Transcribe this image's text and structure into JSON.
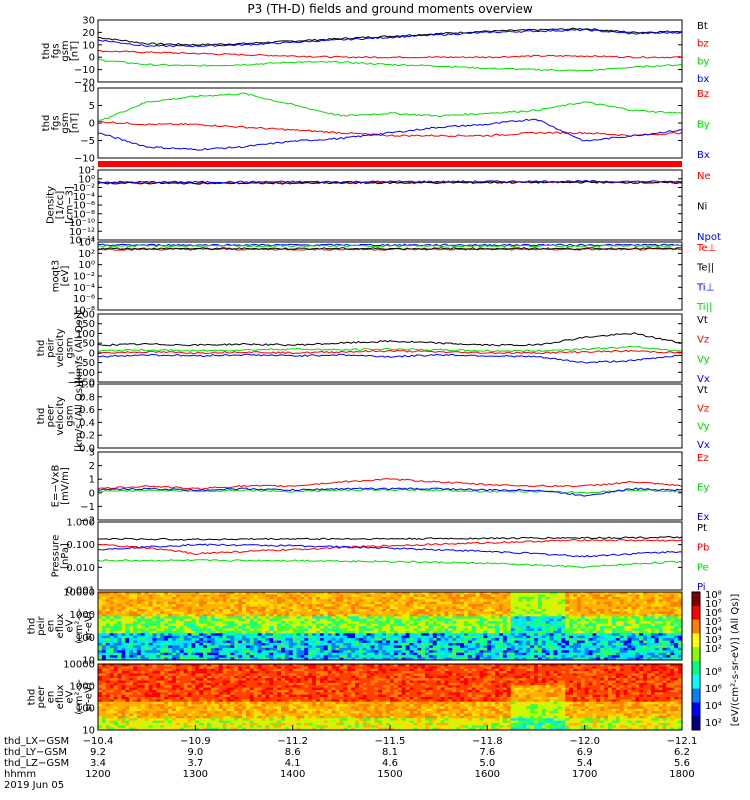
{
  "title": "P3 (TH-D) fields and ground moments overview",
  "colors": {
    "black": "#000000",
    "red": "#ff0000",
    "green": "#00dd00",
    "blue": "#0000ff",
    "qual_bar": "#ff0000"
  },
  "chart_data": [
    {
      "type": "line",
      "id": "fgs_gsm",
      "ylabel": [
        "thd",
        "fgs",
        "gsm",
        "[nT]"
      ],
      "ylim": [
        -20,
        30
      ],
      "yticks": [
        "30",
        "20",
        "10",
        "0",
        "−10",
        "−20"
      ],
      "yscale": "linear",
      "series": [
        {
          "name": "Bt",
          "color": "black",
          "x": [
            12.0,
            12.5,
            13.0,
            13.5,
            14.0,
            14.5,
            15.0,
            15.5,
            16.0,
            16.5,
            17.0,
            17.5,
            18.0
          ],
          "y": [
            16,
            11,
            10,
            11,
            13,
            15,
            17,
            19,
            21,
            22,
            23,
            20,
            21
          ]
        },
        {
          "name": "bz",
          "color": "red",
          "x": [
            12.0,
            12.5,
            13.0,
            13.5,
            14.0,
            14.5,
            15.0,
            15.5,
            16.0,
            16.5,
            17.0,
            17.5,
            18.0
          ],
          "y": [
            5,
            4,
            3,
            2,
            1,
            0,
            0,
            0,
            0,
            1,
            1,
            0,
            0
          ]
        },
        {
          "name": "by",
          "color": "green",
          "x": [
            12.0,
            12.5,
            13.0,
            13.5,
            14.0,
            14.5,
            15.0,
            15.5,
            16.0,
            16.5,
            17.0,
            17.5,
            18.0
          ],
          "y": [
            -2,
            -6,
            -7,
            -6,
            -4,
            -4,
            -6,
            -7,
            -9,
            -10,
            -11,
            -8,
            -6
          ]
        },
        {
          "name": "bx",
          "color": "blue",
          "x": [
            12.0,
            12.5,
            13.0,
            13.5,
            14.0,
            14.5,
            15.0,
            15.5,
            16.0,
            16.5,
            17.0,
            17.5,
            18.0
          ],
          "y": [
            14,
            9,
            9,
            10,
            12,
            14,
            16,
            18,
            20,
            21,
            22,
            19,
            20
          ]
        }
      ]
    },
    {
      "type": "line",
      "id": "fgs_gsm_2",
      "ylabel": [
        "thd",
        "fgs",
        "gsm",
        "[nT]"
      ],
      "ylim": [
        -15,
        10
      ],
      "yticks": [
        "10",
        "5",
        "0",
        "−5",
        "−10"
      ],
      "yscale": "linear",
      "series": [
        {
          "name": "Bz",
          "color": "red",
          "x": [
            12.0,
            12.5,
            13.0,
            13.5,
            14.0,
            14.5,
            15.0,
            15.5,
            16.0,
            16.5,
            17.0,
            17.5,
            18.0
          ],
          "y": [
            -2,
            -3,
            -3,
            -4,
            -5,
            -6,
            -7,
            -7,
            -7,
            -6,
            -6,
            -7,
            -6
          ]
        },
        {
          "name": "By",
          "color": "green",
          "x": [
            12.0,
            12.5,
            13.0,
            13.5,
            14.0,
            14.5,
            15.0,
            15.5,
            16.0,
            16.5,
            17.0,
            17.5,
            18.0
          ],
          "y": [
            -2,
            5,
            7,
            8,
            4,
            0,
            1,
            0,
            1,
            2,
            5,
            2,
            1
          ]
        },
        {
          "name": "Bx",
          "color": "blue",
          "x": [
            12.0,
            12.5,
            13.0,
            13.5,
            14.0,
            14.5,
            15.0,
            15.5,
            16.0,
            16.5,
            17.0,
            17.5,
            18.0
          ],
          "y": [
            -6,
            -11,
            -12,
            -11,
            -9,
            -8,
            -6,
            -4,
            -3,
            -1,
            -9,
            -7,
            -5
          ]
        }
      ]
    },
    {
      "type": "line",
      "id": "density",
      "ylabel": [
        "Density",
        "[1/cc]",
        "[cm−3]"
      ],
      "ylim": [
        1e-14,
        10000.0
      ],
      "yticks": [
        "10²",
        "10⁰",
        "10⁻²",
        "10⁻⁴",
        "10⁻⁶",
        "10⁻⁸",
        "10⁻¹⁰",
        "10⁻¹²",
        "10⁻¹⁴"
      ],
      "yscale": "log",
      "series": [
        {
          "name": "Ne",
          "color": "red",
          "x": [
            12.0,
            13.0,
            14.0,
            15.0,
            16.0,
            17.0,
            18.0
          ],
          "y": [
            5,
            5,
            5,
            6,
            7,
            8,
            6
          ]
        },
        {
          "name": "Ni",
          "color": "black",
          "x": [
            12.0,
            13.0,
            14.0,
            15.0,
            16.0,
            17.0,
            18.0
          ],
          "y": [
            4,
            4,
            4,
            5,
            6,
            7,
            5
          ]
        },
        {
          "name": "Npot",
          "color": "blue",
          "x": [
            12.0,
            13.0,
            14.0,
            15.0,
            16.0,
            17.0,
            18.0
          ],
          "y": [
            8,
            8,
            9,
            10,
            11,
            12,
            10
          ]
        }
      ]
    },
    {
      "type": "line",
      "id": "moqt3",
      "ylabel": [
        "moqt3",
        "[eV]"
      ],
      "ylim": [
        1e-08,
        10000.0
      ],
      "yticks": [
        "10⁴",
        "10²",
        "10⁰",
        "10⁻²",
        "10⁻⁴",
        "10⁻⁶",
        "10⁻⁸"
      ],
      "yscale": "log",
      "series": [
        {
          "name": "Te⊥",
          "color": "red",
          "x": [
            12.0,
            13.0,
            14.0,
            15.0,
            16.0,
            17.0,
            18.0
          ],
          "y": [
            500,
            500,
            500,
            500,
            500,
            500,
            500
          ]
        },
        {
          "name": "Te||",
          "color": "black",
          "x": [
            12.0,
            13.0,
            14.0,
            15.0,
            16.0,
            17.0,
            18.0
          ],
          "y": [
            700,
            700,
            700,
            700,
            700,
            700,
            700
          ]
        },
        {
          "name": "Ti⊥",
          "color": "blue",
          "x": [
            12.0,
            13.0,
            14.0,
            15.0,
            16.0,
            17.0,
            18.0
          ],
          "y": [
            3000,
            3000,
            3000,
            3000,
            3000,
            3000,
            3000
          ]
        },
        {
          "name": "Ti||",
          "color": "green",
          "x": [
            12.0,
            13.0,
            14.0,
            15.0,
            16.0,
            17.0,
            18.0
          ],
          "y": [
            2000,
            2000,
            2000,
            2000,
            2000,
            2000,
            2000
          ]
        }
      ]
    },
    {
      "type": "line",
      "id": "peir_velocity",
      "ylabel": [
        "thd",
        "peir",
        "velocity",
        "gsm",
        "[km/s (All Qs)]"
      ],
      "ylim": [
        -150,
        200
      ],
      "yticks": [
        "200",
        "150",
        "100",
        "50",
        "0",
        "−50",
        "−100",
        "−150"
      ],
      "yscale": "linear",
      "series": [
        {
          "name": "Vt",
          "color": "black",
          "x": [
            12.0,
            12.5,
            13.0,
            13.5,
            14.0,
            14.5,
            15.0,
            15.5,
            16.0,
            16.5,
            17.0,
            17.5,
            18.0
          ],
          "y": [
            40,
            45,
            40,
            45,
            40,
            50,
            60,
            50,
            40,
            40,
            80,
            100,
            50
          ]
        },
        {
          "name": "Vz",
          "color": "red",
          "x": [
            12.0,
            12.5,
            13.0,
            13.5,
            14.0,
            14.5,
            15.0,
            15.5,
            16.0,
            16.5,
            17.0,
            17.5,
            18.0
          ],
          "y": [
            0,
            5,
            0,
            5,
            0,
            5,
            10,
            5,
            0,
            0,
            5,
            10,
            0
          ]
        },
        {
          "name": "Vy",
          "color": "green",
          "x": [
            12.0,
            12.5,
            13.0,
            13.5,
            14.0,
            14.5,
            15.0,
            15.5,
            16.0,
            16.5,
            17.0,
            17.5,
            18.0
          ],
          "y": [
            10,
            15,
            10,
            15,
            20,
            15,
            20,
            15,
            10,
            10,
            20,
            30,
            10
          ]
        },
        {
          "name": "Vx",
          "color": "blue",
          "x": [
            12.0,
            12.5,
            13.0,
            13.5,
            14.0,
            14.5,
            15.0,
            15.5,
            16.0,
            16.5,
            17.0,
            17.5,
            18.0
          ],
          "y": [
            -20,
            -10,
            -15,
            -10,
            -15,
            -10,
            -20,
            -10,
            -15,
            -20,
            -50,
            -40,
            -10
          ]
        }
      ]
    },
    {
      "type": "line",
      "id": "peer_velocity",
      "ylabel": [
        "thd",
        "peer",
        "velocity",
        "gsm",
        "[km/s (All Qs)]"
      ],
      "ylim": [
        0,
        1
      ],
      "yticks": [
        "1.0",
        "0.8",
        "0.6",
        "0.4",
        "0.2",
        "0.0"
      ],
      "yscale": "linear",
      "series": [
        {
          "name": "Vt",
          "color": "black",
          "x": [],
          "y": []
        },
        {
          "name": "Vz",
          "color": "red",
          "x": [],
          "y": []
        },
        {
          "name": "Vy",
          "color": "green",
          "x": [],
          "y": []
        },
        {
          "name": "Vx",
          "color": "blue",
          "x": [],
          "y": []
        }
      ]
    },
    {
      "type": "line",
      "id": "efield",
      "ylabel": [
        "E=−VxB",
        "[mV/m]"
      ],
      "ylim": [
        -2,
        3
      ],
      "yticks": [
        "3",
        "2",
        "1",
        "0",
        "−1",
        "−2"
      ],
      "yscale": "linear",
      "series": [
        {
          "name": "Ez",
          "color": "red",
          "x": [
            12.0,
            12.5,
            13.0,
            13.5,
            14.0,
            14.5,
            15.0,
            15.5,
            16.0,
            16.5,
            17.0,
            17.5,
            18.0
          ],
          "y": [
            0.3,
            0.5,
            0.3,
            0.5,
            0.5,
            0.8,
            1.0,
            0.8,
            0.6,
            0.5,
            0.5,
            0.8,
            0.5
          ]
        },
        {
          "name": "Ey",
          "color": "green",
          "x": [
            12.0,
            12.5,
            13.0,
            13.5,
            14.0,
            14.5,
            15.0,
            15.5,
            16.0,
            16.5,
            17.0,
            17.5,
            18.0
          ],
          "y": [
            0.1,
            0.2,
            0.1,
            0.2,
            0.1,
            0.2,
            0.2,
            0.2,
            0.1,
            0.1,
            0.0,
            0.2,
            0.1
          ]
        },
        {
          "name": "Ex",
          "color": "blue",
          "x": [
            12.0,
            12.5,
            13.0,
            13.5,
            14.0,
            14.5,
            15.0,
            15.5,
            16.0,
            16.5,
            17.0,
            17.5,
            18.0
          ],
          "y": [
            0.2,
            0.3,
            0.2,
            0.3,
            0.2,
            0.3,
            0.3,
            0.3,
            0.2,
            0.2,
            -0.2,
            0.3,
            0.2
          ]
        }
      ]
    },
    {
      "type": "line",
      "id": "pressure",
      "ylabel": [
        "Pressure",
        "[nPa]"
      ],
      "ylim": [
        0.001,
        1.0
      ],
      "yticks": [
        "1.000",
        "0.100",
        "0.010",
        "0.001"
      ],
      "yscale": "log",
      "series": [
        {
          "name": "Pt",
          "color": "black",
          "x": [
            12.0,
            13.0,
            14.0,
            15.0,
            16.0,
            17.0,
            18.0
          ],
          "y": [
            0.18,
            0.17,
            0.18,
            0.18,
            0.19,
            0.2,
            0.21
          ]
        },
        {
          "name": "Pb",
          "color": "red",
          "x": [
            12.0,
            13.0,
            14.0,
            15.0,
            16.0,
            17.0,
            18.0
          ],
          "y": [
            0.1,
            0.04,
            0.06,
            0.09,
            0.12,
            0.16,
            0.15
          ]
        },
        {
          "name": "Pe",
          "color": "green",
          "x": [
            12.0,
            13.0,
            14.0,
            15.0,
            16.0,
            17.0,
            18.0
          ],
          "y": [
            0.02,
            0.02,
            0.02,
            0.018,
            0.015,
            0.01,
            0.018
          ]
        },
        {
          "name": "Pi",
          "color": "blue",
          "x": [
            12.0,
            13.0,
            14.0,
            15.0,
            16.0,
            17.0,
            18.0
          ],
          "y": [
            0.06,
            0.1,
            0.09,
            0.07,
            0.05,
            0.03,
            0.05
          ]
        }
      ]
    },
    {
      "type": "heatmap",
      "id": "peir_eflux",
      "ylabel": [
        "thd",
        "peir",
        "en",
        "eflux",
        "eV",
        "(cm²-s-",
        "sr-eV)"
      ],
      "ylim": [
        5,
        25000
      ],
      "yticks": [
        "10000",
        "1000",
        "100",
        "10"
      ],
      "yscale": "log"
    },
    {
      "type": "heatmap",
      "id": "peer_eflux",
      "ylabel": [
        "thd",
        "peer",
        "en",
        "eflux",
        "eV",
        "(cm²-s-",
        "sr-eV)"
      ],
      "ylim": [
        5,
        25000
      ],
      "yticks": [
        "10000",
        "1000",
        "100",
        "10"
      ],
      "yscale": "log"
    }
  ],
  "colorbar": {
    "ticks_top": [
      "10⁸",
      "10⁷",
      "10⁶",
      "10⁵",
      "10⁴",
      "10³",
      "10²"
    ],
    "ticks_bottom": [
      "10⁸",
      "10⁶",
      "10⁴",
      "10²"
    ],
    "label": "[eV/(cm²-s-sr-eV)] (All Qs)]"
  },
  "ephemeris": {
    "rows": [
      {
        "label": "thd_LX−GSM",
        "values": [
          "−10.4",
          "−10.9",
          "−11.2",
          "−11.5",
          "−11.8",
          "−12.0",
          "−12.1"
        ]
      },
      {
        "label": "thd_LY−GSM",
        "values": [
          "9.2",
          "9.0",
          "8.6",
          "8.1",
          "7.6",
          "6.9",
          "6.2"
        ]
      },
      {
        "label": "thd_LZ−GSM",
        "values": [
          "3.4",
          "3.7",
          "4.1",
          "4.6",
          "5.0",
          "5.4",
          "5.6"
        ]
      },
      {
        "label": "hhmm",
        "values": [
          "1200",
          "1300",
          "1400",
          "1500",
          "1600",
          "1700",
          "1800"
        ]
      }
    ],
    "date": "2019 Jun 05"
  }
}
